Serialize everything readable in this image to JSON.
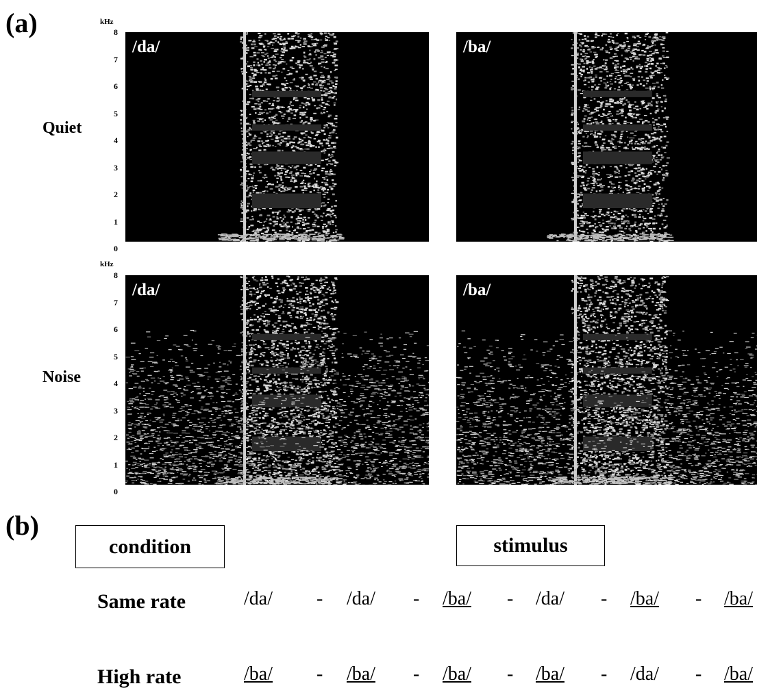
{
  "panel_a": {
    "letter": "(a)",
    "unit": "kHz",
    "y_ticks": [
      "8",
      "7",
      "6",
      "5",
      "4",
      "3",
      "2",
      "1",
      "0"
    ],
    "rows": [
      {
        "label": "Quiet",
        "spectrograms": [
          {
            "label": "/da/"
          },
          {
            "label": "/ba/"
          }
        ]
      },
      {
        "label": "Noise",
        "spectrograms": [
          {
            "label": "/da/"
          },
          {
            "label": "/ba/"
          }
        ]
      }
    ]
  },
  "panel_b": {
    "letter": "(b)",
    "header_condition": "condition",
    "header_stimulus": "stimulus",
    "rows": [
      {
        "condition": "Same rate",
        "tokens": [
          {
            "text": "/da/",
            "underlined": false
          },
          {
            "text": "/da/",
            "underlined": false
          },
          {
            "text": "/ba/",
            "underlined": true
          },
          {
            "text": "/da/",
            "underlined": false
          },
          {
            "text": "/ba/",
            "underlined": true
          },
          {
            "text": "/ba/",
            "underlined": true
          }
        ],
        "separator": "-"
      },
      {
        "condition": "High rate",
        "tokens": [
          {
            "text": "/ba/",
            "underlined": true
          },
          {
            "text": "/ba/",
            "underlined": true
          },
          {
            "text": "/ba/",
            "underlined": true
          },
          {
            "text": "/ba/",
            "underlined": true
          },
          {
            "text": "/da/",
            "underlined": false
          },
          {
            "text": "/ba/",
            "underlined": true
          }
        ],
        "separator": "-"
      }
    ]
  }
}
